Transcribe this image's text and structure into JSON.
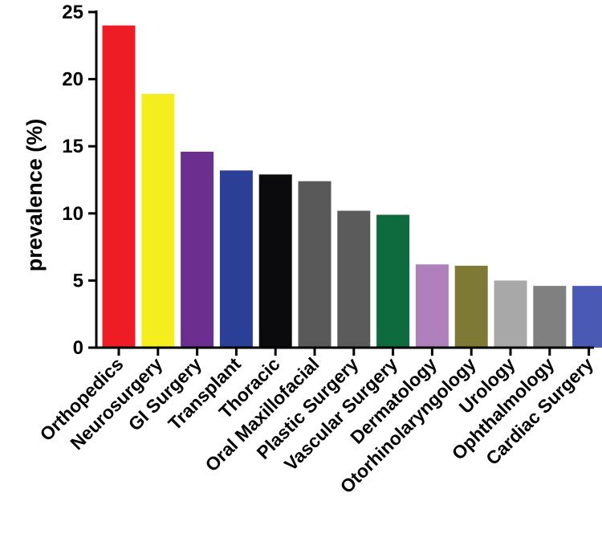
{
  "chart_data": {
    "type": "bar",
    "title": "",
    "xlabel": "",
    "ylabel": "prevalence (%)",
    "ylim": [
      0,
      25
    ],
    "yticks": [
      0,
      5,
      10,
      15,
      20,
      25
    ],
    "grid": false,
    "legend": "none",
    "categories": [
      "Orthopedics",
      "Neurosurgery",
      "GI Surgery",
      "Transplant",
      "Thoracic",
      "Oral Maxillofacial",
      "Plastic Surgery",
      "Vascular Surgery",
      "Dermatology",
      "Otorhinolaryngology",
      "Urology",
      "Ophthalmology",
      "Cardiac Surgery"
    ],
    "values": [
      24.0,
      18.9,
      14.6,
      13.2,
      12.9,
      12.4,
      10.2,
      9.9,
      6.2,
      6.1,
      5.0,
      4.6,
      4.6
    ],
    "colors": [
      "#ee1c25",
      "#f5ee1f",
      "#6b2f8f",
      "#2b3f97",
      "#0b0b0d",
      "#595959",
      "#5b5b5b",
      "#0e6b3d",
      "#b080bd",
      "#7e7a35",
      "#a8a8a8",
      "#808080",
      "#4a5ab4"
    ]
  }
}
